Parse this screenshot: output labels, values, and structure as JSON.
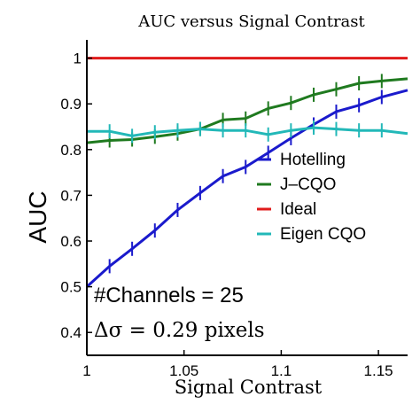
{
  "chart_data": {
    "type": "line",
    "title": "AUC versus Signal Contrast",
    "xlabel": "Signal Contrast",
    "ylabel": "AUC",
    "xlim": [
      1.0,
      1.165
    ],
    "ylim": [
      0.35,
      1.04
    ],
    "xticks": [
      1.0,
      1.05,
      1.1,
      1.15
    ],
    "xtick_labels": [
      "1",
      "1.05",
      "1.1",
      "1.15"
    ],
    "yticks": [
      0.4,
      0.5,
      0.6,
      0.7,
      0.8,
      0.9,
      1.0
    ],
    "ytick_labels": [
      "0.4",
      "0.5",
      "0.6",
      "0.7",
      "0.8",
      "0.9",
      "1"
    ],
    "x": [
      1.0,
      1.0117,
      1.0233,
      1.035,
      1.0467,
      1.0583,
      1.07,
      1.0817,
      1.0933,
      1.105,
      1.1167,
      1.1283,
      1.14,
      1.1517,
      1.165
    ],
    "series": [
      {
        "name": "Hotelling",
        "color": "#1a1acc",
        "values": [
          0.5,
          0.545,
          0.583,
          0.623,
          0.668,
          0.705,
          0.742,
          0.762,
          0.793,
          0.825,
          0.855,
          0.883,
          0.897,
          0.915,
          0.93
        ]
      },
      {
        "name": "J–CQO",
        "color": "#1f7a1f",
        "values": [
          0.815,
          0.82,
          0.822,
          0.828,
          0.835,
          0.845,
          0.865,
          0.868,
          0.89,
          0.902,
          0.92,
          0.932,
          0.945,
          0.95,
          0.955
        ]
      },
      {
        "name": "Ideal",
        "color": "#e01b1b",
        "values": [
          1.0,
          1.0,
          1.0,
          1.0,
          1.0,
          1.0,
          1.0,
          1.0,
          1.0,
          1.0,
          1.0,
          1.0,
          1.0,
          1.0,
          1.0
        ]
      },
      {
        "name": "Eigen CQO",
        "color": "#22b8b8",
        "values": [
          0.84,
          0.84,
          0.83,
          0.838,
          0.842,
          0.845,
          0.842,
          0.842,
          0.833,
          0.842,
          0.848,
          0.845,
          0.842,
          0.842,
          0.835
        ]
      }
    ],
    "legend_position": "right-middle",
    "annotations": [
      "#Channels = 25",
      "Δσ = 0.29 pixels"
    ],
    "grid": false
  }
}
